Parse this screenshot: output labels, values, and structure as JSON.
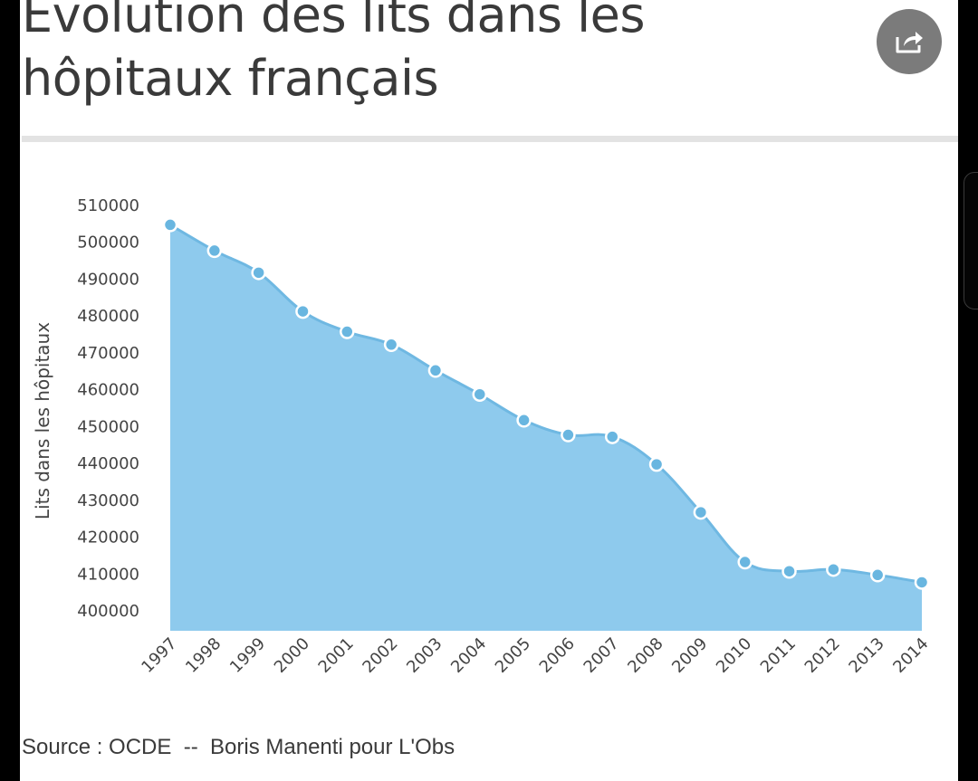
{
  "title": "Evolution des lits dans les hôpitaux français",
  "share_icon": "share-icon",
  "source": "Source : OCDE  --  Boris Manenti pour L'Obs",
  "colors": {
    "area_fill": "#8ecaed",
    "line": "#6fb8e2",
    "point": "#69b6e0",
    "point_stroke": "#ffffff",
    "text": "#3a3a3a",
    "share_button": "#7b7b7b"
  },
  "chart_data": {
    "type": "area",
    "title": "Evolution des lits dans les hôpitaux français",
    "xlabel": "",
    "ylabel": "Lits dans les hôpitaux",
    "x": [
      "1997",
      "1998",
      "1999",
      "2000",
      "2001",
      "2002",
      "2003",
      "2004",
      "2005",
      "2006",
      "2007",
      "2008",
      "2009",
      "2010",
      "2011",
      "2012",
      "2013",
      "2014"
    ],
    "values": [
      504500,
      497500,
      491500,
      481000,
      475500,
      472000,
      465000,
      458500,
      451500,
      447500,
      447000,
      439500,
      426500,
      413000,
      410500,
      411000,
      409500,
      407500
    ],
    "yticks": [
      "400000",
      "410000",
      "420000",
      "430000",
      "440000",
      "450000",
      "460000",
      "470000",
      "480000",
      "490000",
      "500000",
      "510000"
    ],
    "ylim": [
      400000,
      510000
    ],
    "markers": true,
    "grid": false,
    "legend": "none"
  }
}
